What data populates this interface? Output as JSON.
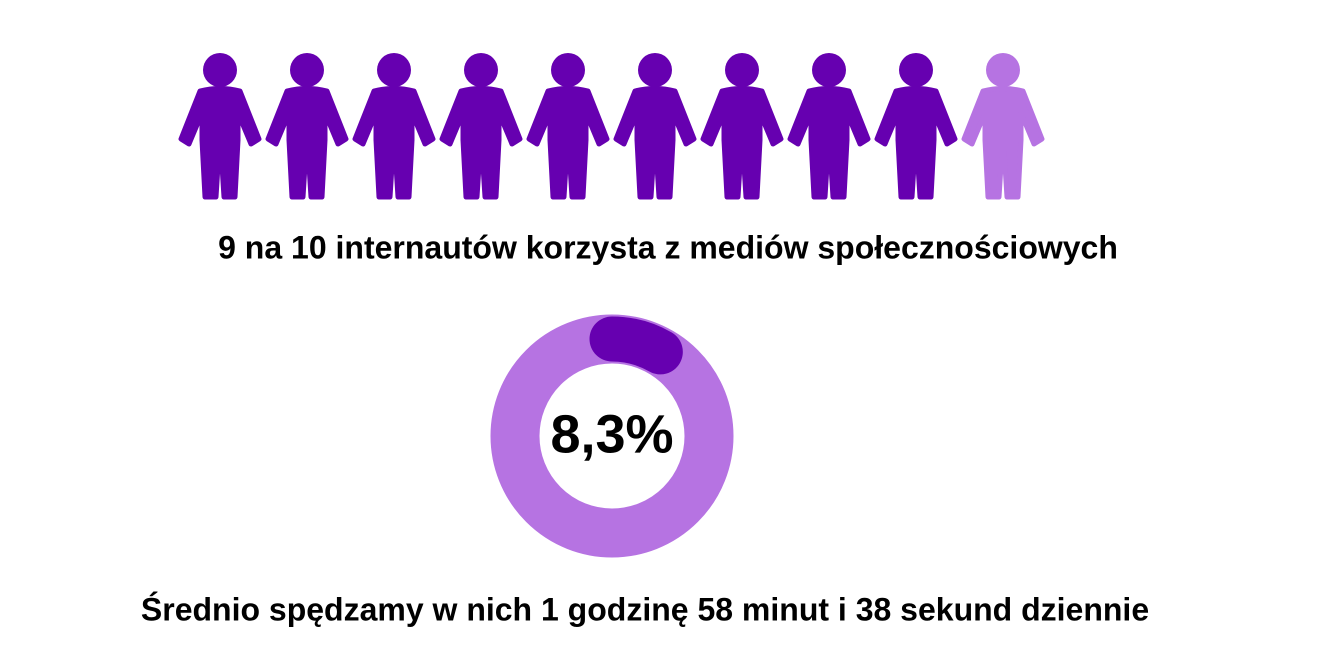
{
  "chart_data": [
    {
      "type": "pictogram",
      "title": "9 na 10 internautów korzysta z mediów społecznościowych",
      "series": [
        {
          "color": "#6600b0",
          "values": [
            9
          ]
        },
        {
          "color": "#b673e2",
          "values": [
            1
          ]
        }
      ]
    },
    {
      "type": "donut",
      "title": "Średnio spędzamy w nich 1 godzinę 58 minut i 38 sekund dziennie",
      "values": [
        8.3
      ],
      "value_labels": [
        "8,3%"
      ],
      "color": "#6600b0",
      "track_color": "#b673e2"
    }
  ]
}
